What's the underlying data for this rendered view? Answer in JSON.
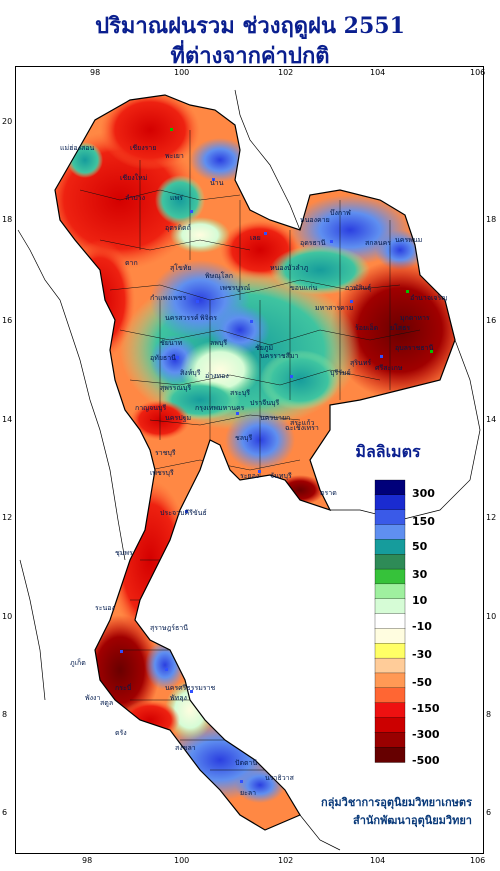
{
  "title_line1": "ปริมาณฝนรวม ช่วงฤดูฝน 2551",
  "title_line2": "ที่ต่างจากค่าปกติ",
  "lon_ticks": [
    "98",
    "100",
    "102",
    "104",
    "106"
  ],
  "lat_ticks": [
    "20",
    "18",
    "16",
    "14",
    "12",
    "10",
    "8",
    "6"
  ],
  "legend": {
    "unit": "มิลลิเมตร",
    "labels": [
      "300",
      "150",
      "50",
      "30",
      "10",
      "-10",
      "-30",
      "-50",
      "-150",
      "-300",
      "-500"
    ],
    "colors": [
      "#00007a",
      "#1a2bd0",
      "#3a5ae8",
      "#5f8ff0",
      "#169c9c",
      "#2e8b57",
      "#36c23a",
      "#9ff09f",
      "#d6fcd6",
      "#ffffff",
      "#fffde0",
      "#ffff66",
      "#ffcc99",
      "#ff9955",
      "#ff6633",
      "#ee1111",
      "#cc0000",
      "#990000",
      "#660000"
    ]
  },
  "place_labels": [
    "เชียงราย",
    "เชียงใหม่",
    "ลำปาง",
    "แพร่",
    "น่าน",
    "พะเยา",
    "แม่ฮ่องสอน",
    "อุตรดิตถ์",
    "ตาก",
    "สุโขทัย",
    "พิษณุโลก",
    "เลย",
    "อุดรธานี",
    "หนองคาย",
    "สกลนคร",
    "นครพนม",
    "ขอนแก่น",
    "มุกดาหาร",
    "กาฬสินธุ์",
    "ร้อยเอ็ด",
    "อุบลราชธานี",
    "นครสวรรค์",
    "ชัยนาท",
    "ลพบุรี",
    "สุพรรณบุรี",
    "กาญจนบุรี",
    "นครราชสีมา",
    "บุรีรัมย์",
    "สุรินทร์",
    "ศรีสะเกษ",
    "กรุงเทพมหานคร",
    "ปราจีนบุรี",
    "สระแก้ว",
    "ชลบุรี",
    "ระยอง",
    "จันทบุรี",
    "ประจวบคีรีขันธ์",
    "ชุมพร",
    "ระนอง",
    "สุราษฎร์ธานี",
    "นครศรีธรรมราช",
    "ภูเก็ต",
    "กระบี่",
    "ตรัง",
    "สงขลา",
    "ปัตตานี",
    "นราธิวาส",
    "ยะลา",
    "สตูล",
    "พังงา",
    "ชัยภูมิ",
    "เพชรบูรณ์",
    "กำแพงเพชร",
    "พิจิตร",
    "หนองบัวลำภู",
    "สระบุรี",
    "ราชบุรี",
    "เพชรบุรี",
    "อ่างทอง",
    "สิงห์บุรี",
    "นครนายก",
    "ฉะเชิงเทรา",
    "ตราด",
    "พัทลุง",
    "ยโสธร",
    "อำนาจเจริญ",
    "บึงกาฬ",
    "มหาสารคาม",
    "อุทัยธานี",
    "นครปฐม"
  ],
  "credit_line1": "กลุ่มวิชาการอุตุนิยมวิทยาเกษตร",
  "credit_line2": "สำนักพัฒนาอุตุนิยมวิทยา"
}
